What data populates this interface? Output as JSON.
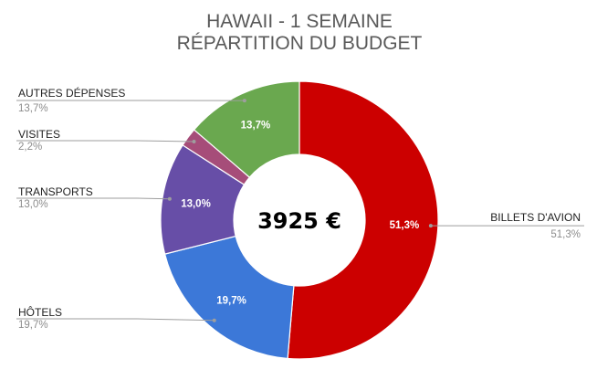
{
  "chart_data": {
    "type": "pie",
    "variant": "donut",
    "title_line1": "HAWAII - 1 SEMAINE",
    "title_line2": "RÉPARTITION DU BUDGET",
    "center_text": "3925 €",
    "start_at": "top",
    "direction": "clockwise",
    "slices": [
      {
        "label": "BILLETS D'AVION",
        "value": 51.3,
        "value_text": "51,3%",
        "color": "#cc0000",
        "legend_side": "right"
      },
      {
        "label": "HÔTELS",
        "value": 19.7,
        "value_text": "19,7%",
        "color": "#3c78d8",
        "legend_side": "left"
      },
      {
        "label": "TRANSPORTS",
        "value": 13.0,
        "value_text": "13,0%",
        "color": "#674ea7",
        "legend_side": "left"
      },
      {
        "label": "VISITES",
        "value": 2.2,
        "value_text": "2,2%",
        "color": "#a64d79",
        "legend_side": "left"
      },
      {
        "label": "AUTRES DÉPENSES",
        "value": 13.7,
        "value_text": "13,7%",
        "color": "#6aa84f",
        "legend_side": "left"
      }
    ]
  }
}
